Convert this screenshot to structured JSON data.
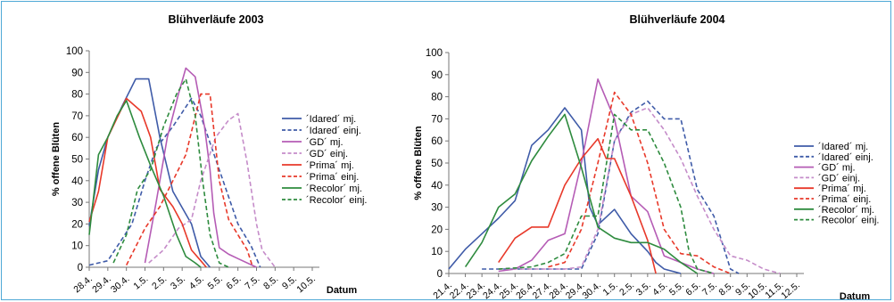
{
  "chart_data": [
    {
      "type": "line",
      "title": "Blühverläufe 2003",
      "xlabel": "Datum",
      "ylabel": "% offene Blüten",
      "ylim": [
        0,
        100
      ],
      "yticks": [
        "0",
        "10",
        "20",
        "30",
        "40",
        "50",
        "60",
        "70",
        "80",
        "90",
        "100"
      ],
      "grid": false,
      "legend_position": "right",
      "categories": [
        "28.4.",
        "29.4.",
        "30.4.",
        "1.5.",
        "2.5.",
        "3.5.",
        "4.5.",
        "5.5.",
        "6.5.",
        "7.5.",
        "8.5.",
        "9.5.",
        "10.5."
      ],
      "series": [
        {
          "name": "´Idared´ mj.",
          "color": "#3f5ba8",
          "dash": false,
          "points": [
            [
              0,
              19
            ],
            [
              0.5,
              45
            ],
            [
              1,
              60
            ],
            [
              1.8,
              75
            ],
            [
              2.5,
              87
            ],
            [
              3.2,
              87
            ],
            [
              3.8,
              60
            ],
            [
              4.5,
              35
            ],
            [
              5.5,
              20
            ],
            [
              6,
              5
            ],
            [
              6.5,
              0
            ]
          ]
        },
        {
          "name": "´Idared´ einj.",
          "color": "#3f5ba8",
          "dash": true,
          "points": [
            [
              0,
              1
            ],
            [
              1,
              3
            ],
            [
              2.3,
              20
            ],
            [
              3,
              40
            ],
            [
              3.6,
              55
            ],
            [
              4.5,
              65
            ],
            [
              5.5,
              78
            ],
            [
              6,
              70
            ],
            [
              7,
              45
            ],
            [
              8,
              20
            ],
            [
              8.7,
              10
            ],
            [
              9.2,
              0
            ]
          ]
        },
        {
          "name": "´GD´ mj.",
          "color": "#b55cb5",
          "dash": false,
          "points": [
            [
              3,
              2
            ],
            [
              3.6,
              30
            ],
            [
              4.2,
              60
            ],
            [
              4.8,
              80
            ],
            [
              5.2,
              92
            ],
            [
              5.7,
              88
            ],
            [
              6.2,
              65
            ],
            [
              6.5,
              45
            ],
            [
              6.7,
              25
            ],
            [
              7,
              9
            ],
            [
              7.5,
              6
            ],
            [
              8,
              4
            ],
            [
              9,
              0
            ]
          ]
        },
        {
          "name": "´GD´ einj.",
          "color": "#c58cc9",
          "dash": true,
          "points": [
            [
              3.2,
              2
            ],
            [
              4,
              8
            ],
            [
              4.8,
              18
            ],
            [
              5.5,
              22
            ],
            [
              6,
              40
            ],
            [
              6.8,
              60
            ],
            [
              7.5,
              68
            ],
            [
              8,
              71
            ],
            [
              8.5,
              48
            ],
            [
              9,
              20
            ],
            [
              9.3,
              8
            ],
            [
              10,
              0
            ]
          ]
        },
        {
          "name": "´Prima´ mj.",
          "color": "#e8392a",
          "dash": false,
          "points": [
            [
              0,
              21
            ],
            [
              0.5,
              35
            ],
            [
              1,
              60
            ],
            [
              2,
              78
            ],
            [
              2.8,
              72
            ],
            [
              3.3,
              60
            ],
            [
              3.8,
              36
            ],
            [
              4.5,
              28
            ],
            [
              5,
              20
            ],
            [
              5.5,
              8
            ],
            [
              6,
              3
            ],
            [
              6.3,
              0
            ]
          ]
        },
        {
          "name": "´Prima´ einj.",
          "color": "#e8392a",
          "dash": true,
          "points": [
            [
              2,
              1
            ],
            [
              3,
              18
            ],
            [
              3.8,
              28
            ],
            [
              4.5,
              40
            ],
            [
              5.2,
              52
            ],
            [
              6,
              80
            ],
            [
              6.5,
              80
            ],
            [
              7,
              40
            ],
            [
              7.5,
              22
            ],
            [
              8,
              15
            ],
            [
              8.5,
              8
            ],
            [
              8.8,
              0
            ]
          ]
        },
        {
          "name": "´Recolor´ mj.",
          "color": "#2e8b3e",
          "dash": false,
          "points": [
            [
              0,
              15
            ],
            [
              0.5,
              52
            ],
            [
              1,
              60
            ],
            [
              1.5,
              70
            ],
            [
              2,
              77
            ],
            [
              2.7,
              60
            ],
            [
              3.3,
              47
            ],
            [
              4,
              33
            ],
            [
              4.7,
              15
            ],
            [
              5.2,
              5
            ],
            [
              5.7,
              2
            ],
            [
              6,
              0
            ]
          ]
        },
        {
          "name": "´Recolor´ einj.",
          "color": "#2e8b3e",
          "dash": true,
          "points": [
            [
              1.3,
              2
            ],
            [
              2,
              15
            ],
            [
              2.6,
              36
            ],
            [
              3.3,
              45
            ],
            [
              4,
              65
            ],
            [
              4.7,
              80
            ],
            [
              5.2,
              87
            ],
            [
              5.7,
              70
            ],
            [
              6.1,
              40
            ],
            [
              6.5,
              15
            ],
            [
              7,
              2
            ],
            [
              7.5,
              0
            ]
          ]
        }
      ]
    },
    {
      "type": "line",
      "title": "Blühverläufe 2004",
      "xlabel": "Datum",
      "ylabel": "% offene Blüten",
      "ylim": [
        0,
        100
      ],
      "yticks": [
        "0",
        "10",
        "20",
        "30",
        "40",
        "50",
        "60",
        "70",
        "80",
        "90",
        "100"
      ],
      "grid": false,
      "legend_position": "right",
      "categories": [
        "21.4.",
        "22.4.",
        "23.4.",
        "24.4.",
        "25.4.",
        "26.4.",
        "27.4.",
        "28.4.",
        "29.4.",
        "30.4.",
        "1.5.",
        "2.5.",
        "3.5.",
        "4.5.",
        "5.5.",
        "6.5.",
        "7.5.",
        "8.5.",
        "9.5.",
        "10.5.",
        "11.5.",
        "12.5."
      ],
      "series": [
        {
          "name": "´Idared´ mj.",
          "color": "#3f5ba8",
          "dash": false,
          "points": [
            [
              0,
              2
            ],
            [
              1,
              11
            ],
            [
              2,
              18
            ],
            [
              3,
              25
            ],
            [
              4,
              33
            ],
            [
              5,
              58
            ],
            [
              6,
              65
            ],
            [
              7,
              75
            ],
            [
              8,
              65
            ],
            [
              8.5,
              30
            ],
            [
              9,
              22
            ],
            [
              10,
              29
            ],
            [
              11,
              18
            ],
            [
              12,
              10
            ],
            [
              12.5,
              5
            ],
            [
              13,
              2
            ],
            [
              14,
              0
            ]
          ]
        },
        {
          "name": "´Idared´ einj.",
          "color": "#3f5ba8",
          "dash": true,
          "points": [
            [
              2,
              2
            ],
            [
              4,
              2
            ],
            [
              6,
              2
            ],
            [
              7,
              2
            ],
            [
              8,
              2
            ],
            [
              9,
              18
            ],
            [
              10,
              60
            ],
            [
              11,
              73
            ],
            [
              12,
              78
            ],
            [
              13,
              70
            ],
            [
              14,
              70
            ],
            [
              15,
              38
            ],
            [
              16,
              26
            ],
            [
              17,
              2
            ],
            [
              17.5,
              0
            ]
          ]
        },
        {
          "name": "´GD´ mj.",
          "color": "#b55cb5",
          "dash": false,
          "points": [
            [
              3,
              1
            ],
            [
              4,
              2
            ],
            [
              5,
              6
            ],
            [
              6,
              15
            ],
            [
              7,
              18
            ],
            [
              8,
              50
            ],
            [
              9,
              88
            ],
            [
              10,
              70
            ],
            [
              11,
              35
            ],
            [
              12,
              28
            ],
            [
              13,
              8
            ],
            [
              14,
              5
            ],
            [
              15,
              2
            ],
            [
              16,
              0
            ]
          ]
        },
        {
          "name": "´GD´ einj.",
          "color": "#c58cc9",
          "dash": true,
          "points": [
            [
              3,
              2
            ],
            [
              5,
              2
            ],
            [
              7,
              2
            ],
            [
              8,
              3
            ],
            [
              9,
              20
            ],
            [
              10,
              60
            ],
            [
              11,
              72
            ],
            [
              12,
              75
            ],
            [
              13,
              65
            ],
            [
              14,
              52
            ],
            [
              15,
              35
            ],
            [
              16,
              20
            ],
            [
              17,
              8
            ],
            [
              18,
              6
            ],
            [
              19,
              2
            ],
            [
              20,
              0
            ]
          ]
        },
        {
          "name": "´Prima´ mj.",
          "color": "#e8392a",
          "dash": false,
          "points": [
            [
              3,
              5
            ],
            [
              4,
              16
            ],
            [
              5,
              21
            ],
            [
              6,
              21
            ],
            [
              7,
              40
            ],
            [
              8,
              52
            ],
            [
              9,
              61
            ],
            [
              9.5,
              52
            ],
            [
              10,
              52
            ],
            [
              11,
              35
            ],
            [
              12,
              15
            ],
            [
              12.5,
              0
            ]
          ]
        },
        {
          "name": "´Prima´ einj.",
          "color": "#e8392a",
          "dash": true,
          "points": [
            [
              6,
              3
            ],
            [
              7,
              5
            ],
            [
              8,
              20
            ],
            [
              9,
              50
            ],
            [
              10,
              82
            ],
            [
              11,
              72
            ],
            [
              12,
              50
            ],
            [
              13,
              20
            ],
            [
              14,
              9
            ],
            [
              15,
              8
            ],
            [
              16,
              3
            ],
            [
              17,
              0
            ]
          ]
        },
        {
          "name": "´Recolor´ mj.",
          "color": "#2e8b3e",
          "dash": false,
          "points": [
            [
              1,
              3
            ],
            [
              2,
              14
            ],
            [
              3,
              30
            ],
            [
              4,
              36
            ],
            [
              5,
              51
            ],
            [
              6,
              62
            ],
            [
              7,
              72
            ],
            [
              8,
              48
            ],
            [
              9,
              21
            ],
            [
              10,
              16
            ],
            [
              11,
              14
            ],
            [
              12,
              14
            ],
            [
              13,
              11
            ],
            [
              14,
              5
            ],
            [
              15,
              0
            ]
          ]
        },
        {
          "name": "´Recolor´ einj.",
          "color": "#2e8b3e",
          "dash": true,
          "points": [
            [
              3,
              2
            ],
            [
              5,
              3
            ],
            [
              6,
              5
            ],
            [
              7,
              9
            ],
            [
              8,
              26
            ],
            [
              9,
              26
            ],
            [
              10,
              72
            ],
            [
              11,
              65
            ],
            [
              12,
              65
            ],
            [
              13,
              50
            ],
            [
              14,
              30
            ],
            [
              14.5,
              10
            ],
            [
              15,
              2
            ],
            [
              16,
              0
            ]
          ]
        }
      ]
    }
  ]
}
